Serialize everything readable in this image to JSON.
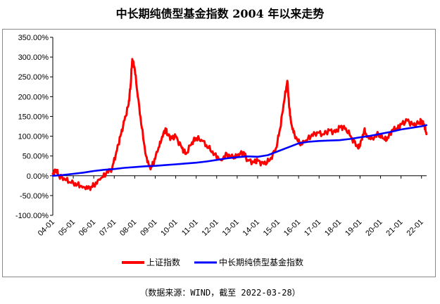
{
  "title": "中长期纯债型基金指数 2004 年以来走势",
  "source": "（数据来源：WIND，截至 2022-03-28）",
  "chart_data": {
    "type": "line",
    "title": "中长期纯债型基金指数 2004 年以来走势",
    "xlabel": "",
    "ylabel": "",
    "ylim": [
      -100,
      350
    ],
    "yticks": [
      -100,
      -50,
      0,
      50,
      100,
      150,
      200,
      250,
      300,
      350
    ],
    "ytick_labels": [
      "-100.00%",
      "-50.00%",
      "0.00%",
      "50.00%",
      "100.00%",
      "150.00%",
      "200.00%",
      "250.00%",
      "300.00%",
      "350.00%"
    ],
    "xlim": [
      2004.0,
      2022.25
    ],
    "xticks": [
      2004,
      2005,
      2006,
      2007,
      2008,
      2009,
      2010,
      2011,
      2012,
      2013,
      2014,
      2015,
      2016,
      2017,
      2018,
      2019,
      2020,
      2021,
      2022
    ],
    "xtick_labels": [
      "04-01",
      "05-01",
      "06-01",
      "07-01",
      "08-01",
      "09-01",
      "10-01",
      "11-01",
      "12-01",
      "13-01",
      "14-01",
      "15-01",
      "16-01",
      "17-01",
      "18-01",
      "19-01",
      "20-01",
      "21-01",
      "22-01"
    ],
    "grid": false,
    "legend": "bottom",
    "series": [
      {
        "name": "上证指数",
        "color": "#ff0000",
        "x": [
          2004.0,
          2004.15,
          2004.3,
          2004.6,
          2004.9,
          2005.2,
          2005.5,
          2005.8,
          2006.0,
          2006.3,
          2006.6,
          2006.9,
          2007.1,
          2007.3,
          2007.5,
          2007.7,
          2007.8,
          2007.88,
          2008.0,
          2008.15,
          2008.35,
          2008.55,
          2008.75,
          2008.9,
          2009.1,
          2009.3,
          2009.5,
          2009.6,
          2009.8,
          2010.0,
          2010.3,
          2010.5,
          2010.8,
          2011.0,
          2011.3,
          2011.6,
          2011.9,
          2012.2,
          2012.5,
          2012.8,
          2013.0,
          2013.3,
          2013.5,
          2013.8,
          2014.0,
          2014.3,
          2014.6,
          2014.9,
          2015.1,
          2015.3,
          2015.45,
          2015.55,
          2015.65,
          2015.8,
          2016.05,
          2016.3,
          2016.6,
          2016.9,
          2017.2,
          2017.5,
          2017.8,
          2018.05,
          2018.3,
          2018.6,
          2018.9,
          2019.0,
          2019.2,
          2019.35,
          2019.6,
          2019.9,
          2020.1,
          2020.3,
          2020.55,
          2020.8,
          2021.0,
          2021.3,
          2021.6,
          2021.9,
          2022.0,
          2022.15,
          2022.24
        ],
        "values": [
          5,
          15,
          0,
          -10,
          -18,
          -22,
          -28,
          -30,
          -25,
          -10,
          5,
          20,
          60,
          100,
          140,
          180,
          230,
          295,
          270,
          200,
          120,
          50,
          20,
          30,
          60,
          90,
          120,
          105,
          95,
          100,
          70,
          55,
          85,
          95,
          88,
          70,
          55,
          40,
          55,
          45,
          50,
          60,
          40,
          35,
          38,
          30,
          40,
          70,
          120,
          190,
          240,
          170,
          130,
          105,
          80,
          85,
          100,
          110,
          105,
          115,
          110,
          125,
          120,
          95,
          70,
          75,
          115,
          100,
          95,
          105,
          95,
          90,
          115,
          120,
          130,
          140,
          128,
          135,
          140,
          125,
          105
        ]
      },
      {
        "name": "中长期纯债型基金指数",
        "color": "#0000ff",
        "x": [
          2004.0,
          2004.5,
          2005.0,
          2005.5,
          2006.0,
          2006.5,
          2007.0,
          2007.5,
          2008.0,
          2008.5,
          2009.0,
          2009.5,
          2010.0,
          2010.5,
          2011.0,
          2011.5,
          2012.0,
          2012.5,
          2013.0,
          2013.5,
          2014.0,
          2014.5,
          2015.0,
          2015.5,
          2016.0,
          2016.5,
          2017.0,
          2017.5,
          2018.0,
          2018.5,
          2019.0,
          2019.5,
          2020.0,
          2020.5,
          2021.0,
          2021.5,
          2022.0,
          2022.24
        ],
        "values": [
          0,
          2,
          5,
          8,
          12,
          15,
          17,
          20,
          22,
          24,
          25,
          27,
          29,
          31,
          33,
          36,
          40,
          44,
          47,
          49,
          48,
          52,
          62,
          72,
          82,
          86,
          88,
          89,
          90,
          93,
          97,
          101,
          106,
          111,
          117,
          121,
          125,
          128
        ]
      }
    ]
  }
}
